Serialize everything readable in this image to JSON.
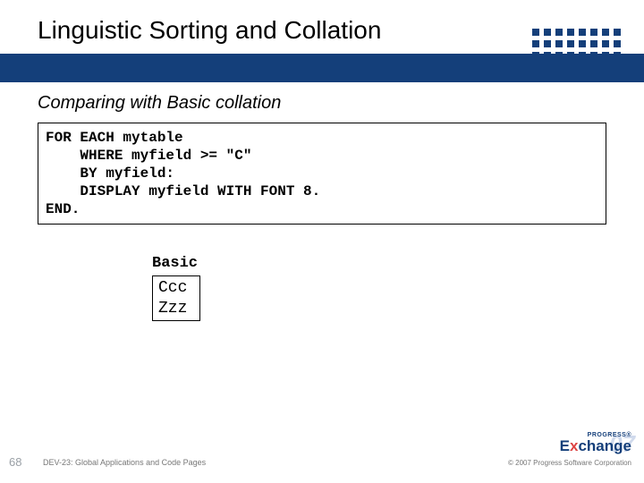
{
  "title": "Linguistic Sorting and Collation",
  "subtitle": "Comparing with Basic collation",
  "code": "FOR EACH mytable\n    WHERE myfield >= \"C\"\n    BY myfield:\n    DISPLAY myfield WITH FONT 8.\nEND.",
  "result": {
    "label": "Basic",
    "rows": "Ccc\nZzz"
  },
  "footer": {
    "page": "68",
    "session": "DEV-23: Global Applications and Code Pages",
    "copyright": "© 2007 Progress Software Corporation"
  },
  "logo": {
    "top": "PROGRESS®",
    "brand_pre": "E",
    "brand_x": "x",
    "brand_post": "change",
    "year": "07"
  },
  "colors": {
    "band": "#143f7a",
    "background": "#ffffff"
  }
}
